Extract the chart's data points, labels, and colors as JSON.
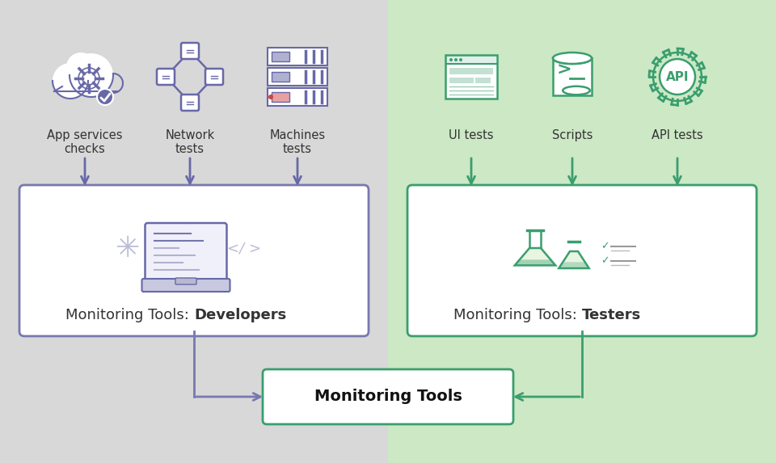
{
  "bg_left_color": "#d8d8d8",
  "bg_right_color": "#cce8c4",
  "dev_box_color": "#ffffff",
  "dev_box_border": "#7878b0",
  "tester_box_color": "#ffffff",
  "tester_box_border": "#3a9e6e",
  "center_box_color": "#ffffff",
  "center_box_border": "#3a9e6e",
  "dev_icon_color": "#6868a8",
  "tester_icon_color": "#3a9e6e",
  "dev_labels": [
    "App services\nchecks",
    "Network\ntests",
    "Machines\ntests"
  ],
  "tester_labels": [
    "UI tests",
    "Scripts",
    "API tests"
  ],
  "dev_box_label_normal": "Monitoring Tools: ",
  "dev_box_label_bold": "Developers",
  "tester_box_label_normal": "Monitoring Tools: ",
  "tester_box_label_bold": "Testers",
  "center_label": "Monitoring Tools",
  "font_size_label": 10.5,
  "font_size_box": 13,
  "font_size_center": 14
}
